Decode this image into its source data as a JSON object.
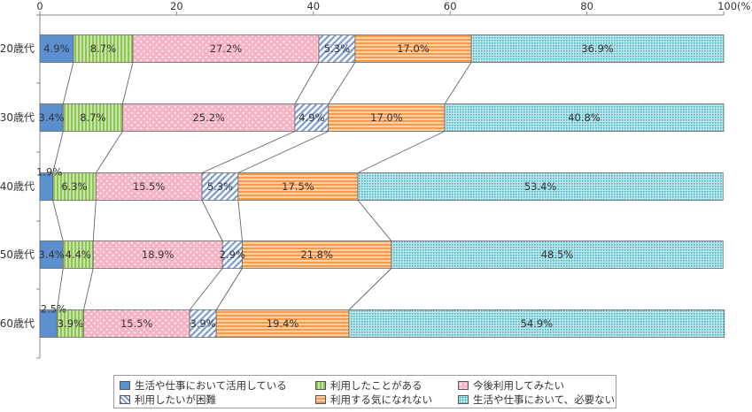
{
  "chart_data": {
    "type": "bar",
    "orientation": "horizontal",
    "stacked": true,
    "categories": [
      "20歳代",
      "30歳代",
      "40歳代",
      "50歳代",
      "60歳代"
    ],
    "xlim": [
      0,
      100
    ],
    "x_ticks": [
      "0",
      "20",
      "40",
      "60",
      "80",
      "100(%)"
    ],
    "series": [
      {
        "name": "生活や仕事において活用している",
        "values": [
          4.9,
          3.4,
          1.9,
          3.4,
          2.5
        ],
        "labels": [
          "4.9%",
          "3.4%",
          "1.9%",
          "3.4%",
          "2.5%"
        ],
        "color": "#5b8fd0",
        "pattern": "solid"
      },
      {
        "name": "利用したことがある",
        "values": [
          8.7,
          8.7,
          6.3,
          4.4,
          3.9
        ],
        "labels": [
          "8.7%",
          "8.7%",
          "6.3%",
          "4.4%",
          "3.9%"
        ],
        "color": "#a6d46e",
        "pattern": "vertical-lines"
      },
      {
        "name": "今後利用してみたい",
        "values": [
          27.2,
          25.2,
          15.5,
          18.9,
          15.5
        ],
        "labels": [
          "27.2%",
          "25.2%",
          "15.5%",
          "18.9%",
          "15.5%"
        ],
        "color": "#f7b6c6",
        "pattern": "dots"
      },
      {
        "name": "利用したいが困難",
        "values": [
          5.3,
          4.9,
          5.3,
          2.9,
          3.9
        ],
        "labels": [
          "5.3%",
          "4.9%",
          "5.3%",
          "2.9%",
          "3.9%"
        ],
        "color": "#8fa8d8",
        "pattern": "diagonal-lines"
      },
      {
        "name": "利用する気になれない",
        "values": [
          17.0,
          17.0,
          17.5,
          21.8,
          19.4
        ],
        "labels": [
          "17.0%",
          "17.0%",
          "17.5%",
          "21.8%",
          "19.4%"
        ],
        "color": "#f6a55f",
        "pattern": "horizontal-lines"
      },
      {
        "name": "生活や仕事において、必要ない",
        "values": [
          36.9,
          40.8,
          53.4,
          48.5,
          54.9
        ],
        "labels": [
          "36.9%",
          "40.8%",
          "53.4%",
          "48.5%",
          "54.9%"
        ],
        "color": "#5cc3d0",
        "pattern": "grid-dots"
      }
    ],
    "connector_lines": true,
    "grid": false,
    "legend": "bottom"
  }
}
